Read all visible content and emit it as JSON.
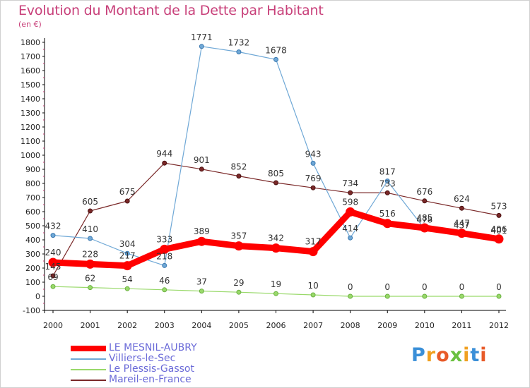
{
  "title": "Evolution du Montant de la Dette par Habitant",
  "unit": "(en €)",
  "logo": "Proxiti",
  "chart_data": {
    "type": "line",
    "x": [
      "2000",
      "2001",
      "2002",
      "2003",
      "2004",
      "2005",
      "2006",
      "2007",
      "2008",
      "2009",
      "2010",
      "2011",
      "2012"
    ],
    "ylim": [
      -100,
      1800
    ],
    "yticks": [
      -100,
      0,
      100,
      200,
      300,
      400,
      500,
      600,
      700,
      800,
      900,
      1000,
      1100,
      1200,
      1300,
      1400,
      1500,
      1600,
      1700,
      1800
    ],
    "grid": false,
    "legend_position": "bottom-left",
    "series": [
      {
        "name": "LE MESNIL-AUBRY",
        "color": "#ff0000",
        "values": [
          240,
          228,
          217,
          333,
          389,
          357,
          342,
          317,
          598,
          516,
          485,
          447,
          406
        ]
      },
      {
        "name": "Villiers-le-Sec",
        "color": "#6fa8d6",
        "values": [
          432,
          410,
          304,
          218,
          1771,
          1732,
          1678,
          943,
          414,
          817,
          478,
          437,
          401
        ]
      },
      {
        "name": "Le Plessis-Gassot",
        "color": "#99d96a",
        "values": [
          69,
          62,
          54,
          46,
          37,
          29,
          19,
          10,
          0,
          0,
          0,
          0,
          0
        ]
      },
      {
        "name": "Mareil-en-France",
        "color": "#7a2828",
        "values": [
          145,
          605,
          675,
          944,
          901,
          852,
          805,
          769,
          734,
          733,
          676,
          624,
          573
        ]
      }
    ]
  }
}
